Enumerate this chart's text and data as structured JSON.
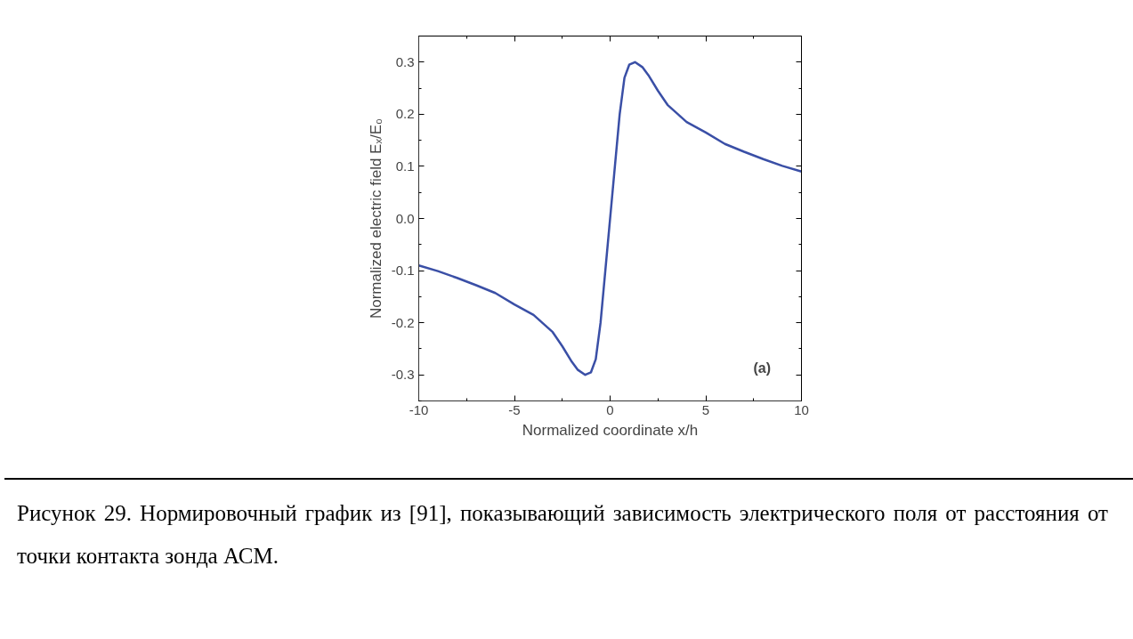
{
  "chart_data": {
    "type": "line",
    "xlabel": "Normalized coordinate x/h",
    "ylabel": "Normalized electric field Eₓ/E₀",
    "x": [
      -10,
      -9,
      -8,
      -7,
      -6,
      -5,
      -4,
      -3,
      -2.5,
      -2,
      -1.7,
      -1.3,
      -1.0,
      -0.75,
      -0.5,
      -0.25,
      0,
      0.25,
      0.5,
      0.75,
      1.0,
      1.3,
      1.7,
      2,
      2.5,
      3,
      4,
      5,
      6,
      7,
      8,
      9,
      10
    ],
    "series": [
      {
        "color": "#3a4fa6",
        "values": [
          -0.09,
          -0.101,
          -0.114,
          -0.128,
          -0.143,
          -0.165,
          -0.185,
          -0.218,
          -0.245,
          -0.275,
          -0.29,
          -0.3,
          -0.295,
          -0.27,
          -0.2,
          -0.1,
          0,
          0.1,
          0.2,
          0.27,
          0.295,
          0.3,
          0.29,
          0.275,
          0.245,
          0.218,
          0.185,
          0.165,
          0.143,
          0.128,
          0.114,
          0.101,
          0.09
        ]
      }
    ],
    "xlim": [
      -10,
      10
    ],
    "ylim": [
      -0.35,
      0.35
    ],
    "xticks": [
      -10,
      -5,
      0,
      5,
      10
    ],
    "yticks": [
      -0.3,
      -0.2,
      -0.1,
      {
        "value": 0,
        "label": "0.0"
      },
      0.1,
      0.2,
      0.3
    ],
    "grid": false,
    "marker": "none",
    "line_style": "solid",
    "annotations": [
      "(a)",
      "Рисунок 29.     Нормировочный график из [91], показывающий зависимость электрического поля от расстояния от точки контакта зонда АСМ."
    ]
  }
}
